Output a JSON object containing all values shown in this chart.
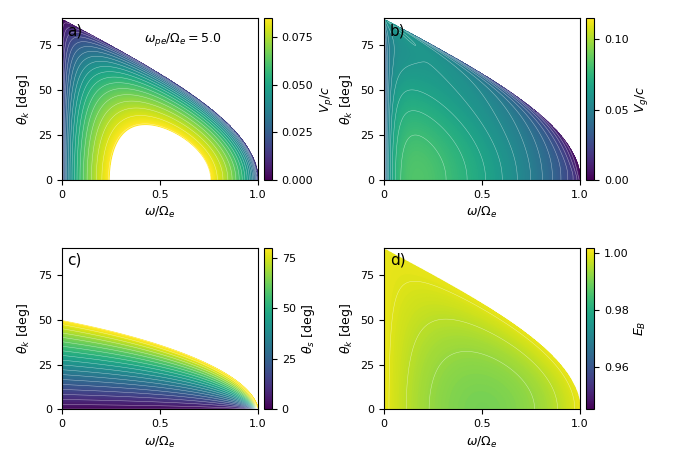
{
  "omega_pe_over_Omega_e": 5.0,
  "omega_range": [
    0.005,
    0.999
  ],
  "theta_range": [
    0.0,
    89.5
  ],
  "n_omega": 400,
  "n_theta": 350,
  "panels": [
    {
      "label": "a)",
      "cbar_label": "$V_p/c$",
      "cbar_ticks": [
        0.0,
        0.025,
        0.05,
        0.075
      ],
      "clim": [
        0.0,
        0.085
      ]
    },
    {
      "label": "b)",
      "cbar_label": "$V_g/c$",
      "cbar_ticks": [
        0.0,
        0.05,
        0.1
      ],
      "clim": [
        0.0,
        0.115
      ]
    },
    {
      "label": "c)",
      "cbar_label": "$\\theta_s$ [deg]",
      "cbar_ticks": [
        0,
        25,
        50,
        75
      ],
      "clim": [
        0.0,
        80.0
      ]
    },
    {
      "label": "d)",
      "cbar_label": "$E_B$",
      "cbar_ticks": [
        0.96,
        0.98,
        1.0
      ],
      "clim": [
        0.945,
        1.002
      ]
    }
  ],
  "annotation": "$\\omega_{pe}/\\Omega_e = 5.0$",
  "xlabel": "$\\omega/\\Omega_e$",
  "ylabel": "$\\theta_k$ [deg]",
  "xticks": [
    0.0,
    0.5,
    1.0
  ],
  "xticklabels": [
    "0",
    "0.5",
    "1.0"
  ],
  "yticks": [
    0,
    25,
    50,
    75
  ],
  "n_contours": 20,
  "colormap": "viridis",
  "figsize": [
    6.85,
    4.55
  ],
  "dpi": 100
}
